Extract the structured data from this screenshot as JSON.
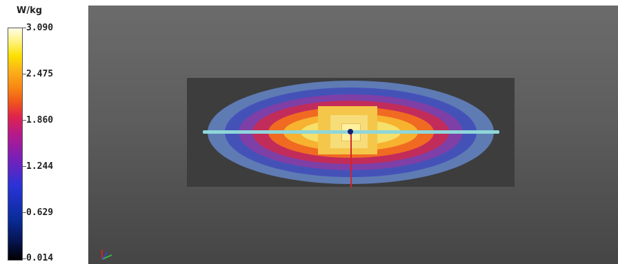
{
  "legend": {
    "unit": "W/kg",
    "ticks": [
      "3.090",
      "2.475",
      "1.860",
      "1.244",
      "0.629",
      "0.014"
    ]
  },
  "viewport": {
    "marker_color": "#1a2070",
    "line_color": "#8fd6da",
    "axis_color": "#d4232a"
  }
}
